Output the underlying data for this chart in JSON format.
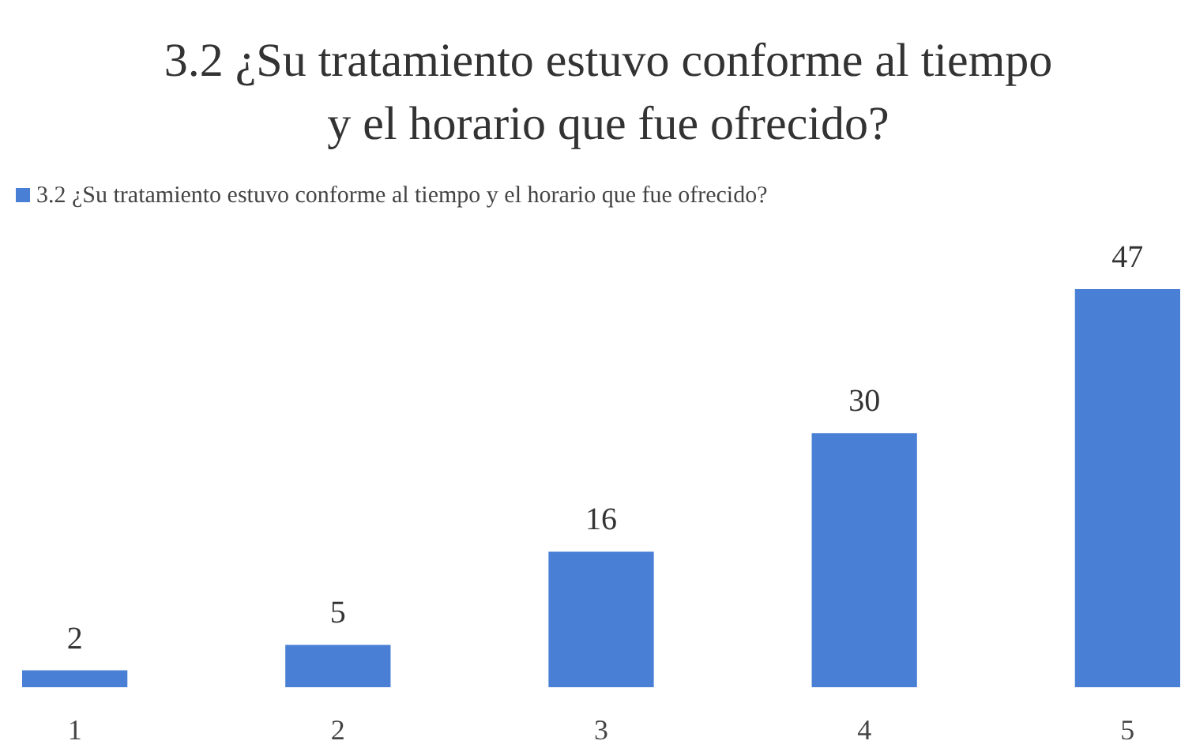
{
  "chart_data": {
    "type": "bar",
    "title": "3.2 ¿Su tratamiento estuvo conforme al tiempo y el horario que fue ofrecido?",
    "categories": [
      "1",
      "2",
      "3",
      "4",
      "5"
    ],
    "series": [
      {
        "name": "3.2 ¿Su tratamiento estuvo conforme al tiempo y el horario que fue ofrecido?",
        "color": "#4a7fd6",
        "values": [
          2,
          5,
          16,
          30,
          47
        ]
      }
    ],
    "data_labels": true,
    "legend": "top left"
  }
}
